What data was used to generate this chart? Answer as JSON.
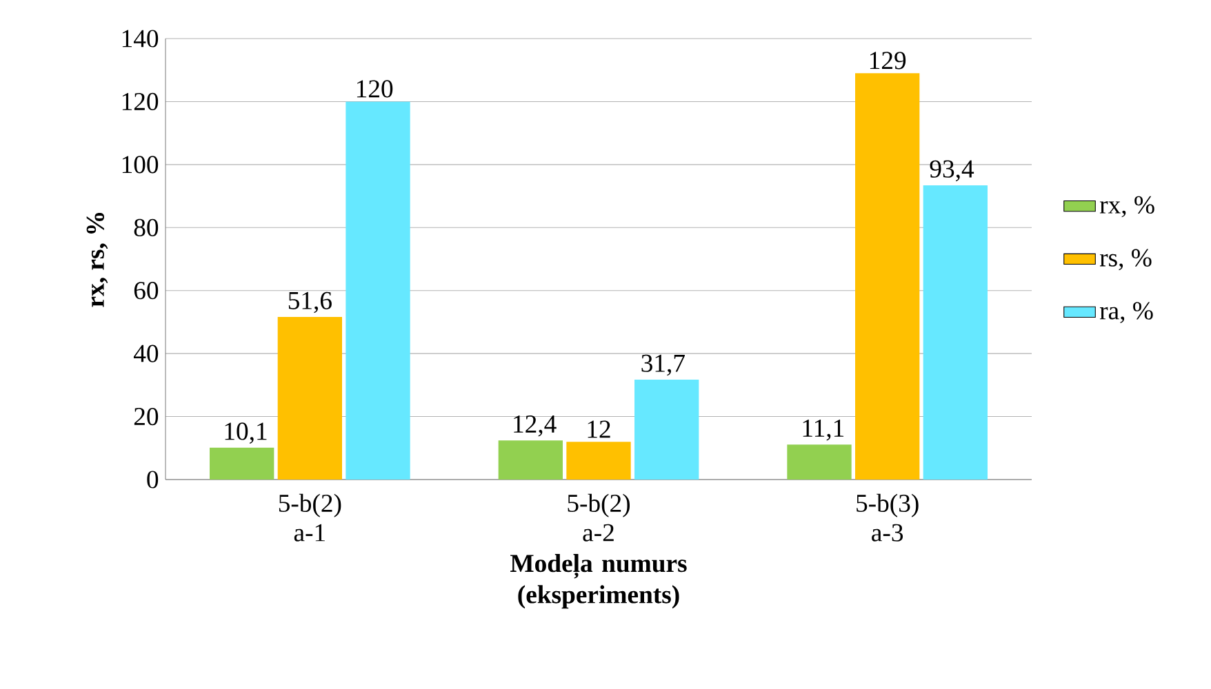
{
  "chart_data": {
    "type": "bar",
    "xlabel": "Modeļa numurs (eksperiments)",
    "ylabel": "rx, rs, %",
    "categories": [
      "5-b(2) a-1",
      "5-b(2) a-2",
      "5-b(3) a-3"
    ],
    "series": [
      {
        "name": "rx, %",
        "color": "#92d050",
        "values": [
          10.1,
          12.4,
          11.1
        ],
        "value_labels": [
          "10,1",
          "12,4",
          "11,1"
        ]
      },
      {
        "name": "rs, %",
        "color": "#ffc000",
        "values": [
          51.6,
          12,
          129
        ],
        "value_labels": [
          "51,6",
          "12",
          "129"
        ]
      },
      {
        "name": "ra, %",
        "color": "#66e8ff",
        "values": [
          120,
          31.7,
          93.4
        ],
        "value_labels": [
          "120",
          "31,7",
          "93,4"
        ]
      }
    ],
    "ylim": [
      0,
      140
    ],
    "yticks": [
      0,
      20,
      40,
      60,
      80,
      100,
      120,
      140
    ],
    "grid": "y",
    "legend": "right"
  }
}
